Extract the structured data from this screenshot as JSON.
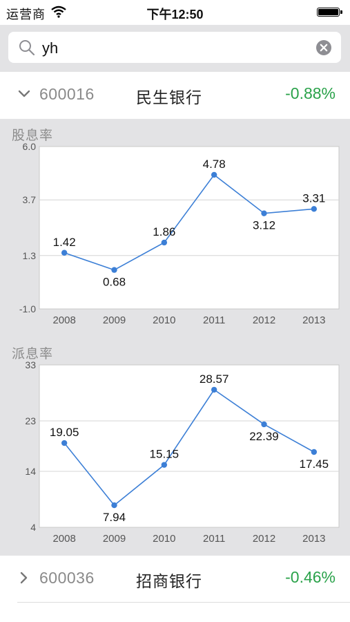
{
  "status_bar": {
    "carrier": "运营商",
    "time": "下午12:50"
  },
  "search": {
    "query": "yh"
  },
  "rows": [
    {
      "code": "600016",
      "name": "民生银行",
      "change": "-0.88%",
      "expanded": true
    },
    {
      "code": "600036",
      "name": "招商银行",
      "change": "-0.46%",
      "expanded": false
    }
  ],
  "colors": {
    "line": "#3c7fd6",
    "change_negative": "#2aa24a",
    "section_bg": "#e3e3e5"
  },
  "chart_data": [
    {
      "type": "line",
      "title": "股息率",
      "categories": [
        "2008",
        "2009",
        "2010",
        "2011",
        "2012",
        "2013"
      ],
      "values": [
        1.42,
        0.68,
        1.86,
        4.78,
        3.12,
        3.31
      ],
      "value_labels": [
        "1.42",
        "0.68",
        "1.86",
        "4.78",
        "3.12",
        "3.31"
      ],
      "label_pos": [
        "above",
        "below",
        "above",
        "above",
        "below",
        "above"
      ],
      "ylim": [
        -1.0,
        6.0
      ],
      "yticks": [
        -1.0,
        1.3,
        3.7,
        6.0
      ],
      "ytick_labels": [
        "-1.0",
        "1.3",
        "3.7",
        "6.0"
      ],
      "grid": true
    },
    {
      "type": "line",
      "title": "派息率",
      "categories": [
        "2008",
        "2009",
        "2010",
        "2011",
        "2012",
        "2013"
      ],
      "values": [
        19.05,
        7.94,
        15.15,
        28.57,
        22.39,
        17.45
      ],
      "value_labels": [
        "19.05",
        "7.94",
        "15.15",
        "28.57",
        "22.39",
        "17.45"
      ],
      "label_pos": [
        "above",
        "below",
        "above",
        "above",
        "below",
        "below"
      ],
      "ylim": [
        4,
        33
      ],
      "yticks": [
        4,
        14,
        23,
        33
      ],
      "ytick_labels": [
        "4",
        "14",
        "23",
        "33"
      ],
      "grid": true
    }
  ]
}
